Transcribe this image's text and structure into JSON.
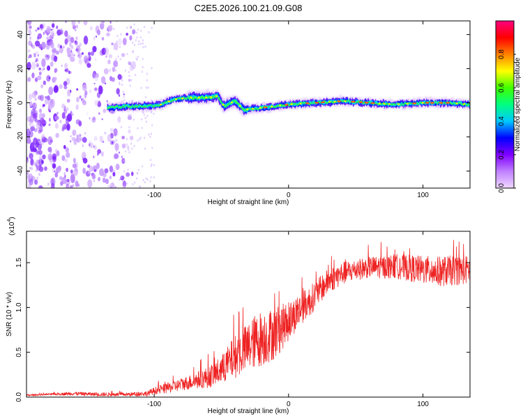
{
  "chart_data": [
    {
      "type": "heatmap",
      "title": "C2E5.2026.100.21.09.G08",
      "xlabel": "Height of straight line (km)",
      "ylabel": "Frequency (Hz)",
      "xlim": [
        -195,
        135
      ],
      "ylim": [
        -50,
        48
      ],
      "xticks": [
        -100,
        0,
        100
      ],
      "yticks": [
        -40,
        -20,
        0,
        20,
        40
      ],
      "colorbar": {
        "label": "Normalized spectral amplitude",
        "range": [
          0,
          1
        ],
        "ticks": [
          "0.0",
          "0.2",
          "0.4",
          "0.6",
          "0.8"
        ],
        "stops": [
          "#f0d8ff",
          "#c080ff",
          "#8000ff",
          "#0000ff",
          "#00c8ff",
          "#00ff80",
          "#40ff00",
          "#ffff00",
          "#ff8000",
          "#ff0000",
          "#ff0080"
        ]
      },
      "ridge": [
        {
          "x": -135,
          "freq": -3
        },
        {
          "x": -120,
          "freq": -2
        },
        {
          "x": -105,
          "freq": -2
        },
        {
          "x": -95,
          "freq": -1
        },
        {
          "x": -85,
          "freq": 2
        },
        {
          "x": -75,
          "freq": 3
        },
        {
          "x": -60,
          "freq": 3
        },
        {
          "x": -53,
          "freq": 4
        },
        {
          "x": -48,
          "freq": -2
        },
        {
          "x": -40,
          "freq": 1
        },
        {
          "x": -33,
          "freq": -4
        },
        {
          "x": -20,
          "freq": -3
        },
        {
          "x": -10,
          "freq": -2
        },
        {
          "x": 0,
          "freq": -1
        },
        {
          "x": 20,
          "freq": 0
        },
        {
          "x": 40,
          "freq": 1
        },
        {
          "x": 60,
          "freq": 0
        },
        {
          "x": 80,
          "freq": -1
        },
        {
          "x": 100,
          "freq": 0
        },
        {
          "x": 120,
          "freq": 0
        },
        {
          "x": 135,
          "freq": -1
        }
      ],
      "noise_region_x": [
        -195,
        -125
      ]
    },
    {
      "type": "line",
      "xlabel": "Height of straight line (km)",
      "ylabel": "SNR (10 * v/v)",
      "y_multiplier": "(x10",
      "y_multiplier_exp": "4",
      "y_multiplier_close": ")",
      "xlim": [
        -195,
        135
      ],
      "ylim": [
        0,
        1.85
      ],
      "xticks": [
        -100,
        0,
        100
      ],
      "yticks": [
        "0.0",
        "0.5",
        "1.0",
        "1.5"
      ],
      "color": "#ee2222",
      "series": [
        {
          "name": "SNR",
          "x": [
            -195,
            -180,
            -160,
            -140,
            -120,
            -105,
            -100,
            -90,
            -80,
            -70,
            -60,
            -50,
            -45,
            -40,
            -35,
            -30,
            -25,
            -20,
            -15,
            -10,
            -5,
            0,
            5,
            10,
            15,
            20,
            25,
            30,
            40,
            50,
            60,
            70,
            80,
            90,
            100,
            110,
            120,
            135
          ],
          "y": [
            0.02,
            0.03,
            0.04,
            0.03,
            0.03,
            0.04,
            0.07,
            0.1,
            0.14,
            0.18,
            0.22,
            0.3,
            0.38,
            0.45,
            0.5,
            0.56,
            0.62,
            0.66,
            0.68,
            0.72,
            0.78,
            0.84,
            0.92,
            1.0,
            1.06,
            1.14,
            1.22,
            1.3,
            1.38,
            1.42,
            1.45,
            1.45,
            1.46,
            1.44,
            1.42,
            1.4,
            1.41,
            1.42
          ],
          "noise": [
            0.01,
            0.01,
            0.02,
            0.02,
            0.02,
            0.03,
            0.04,
            0.06,
            0.07,
            0.09,
            0.12,
            0.16,
            0.2,
            0.24,
            0.26,
            0.28,
            0.3,
            0.32,
            0.3,
            0.3,
            0.26,
            0.22,
            0.2,
            0.18,
            0.17,
            0.16,
            0.15,
            0.14,
            0.13,
            0.12,
            0.12,
            0.13,
            0.14,
            0.15,
            0.16,
            0.17,
            0.17,
            0.16
          ]
        }
      ]
    }
  ]
}
